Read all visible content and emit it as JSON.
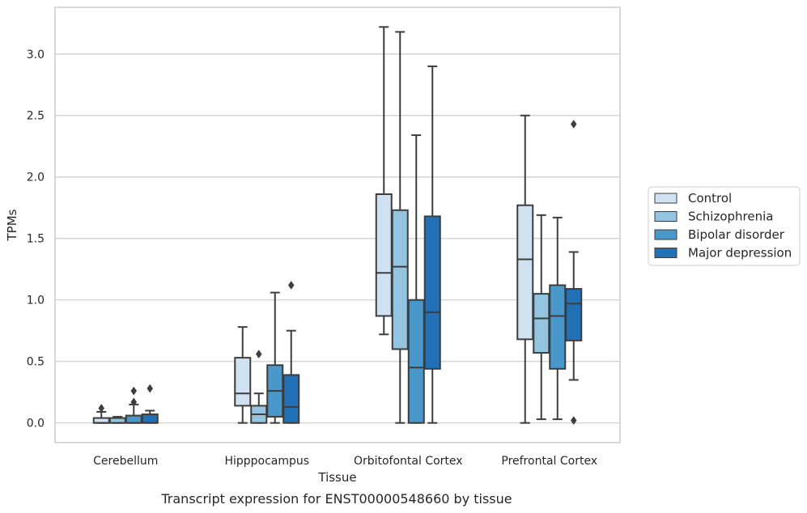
{
  "caption": "Transcript expression for ENST00000548660 by tissue",
  "chart_data": {
    "type": "box",
    "xlabel": "Tissue",
    "ylabel": "TPMs",
    "ylim": [
      -0.16,
      3.38
    ],
    "yticks": [
      0.0,
      0.5,
      1.0,
      1.5,
      2.0,
      2.5,
      3.0
    ],
    "ytick_labels": [
      "0.0",
      "0.5",
      "1.0",
      "1.5",
      "2.0",
      "2.5",
      "3.0"
    ],
    "grid": "horizontal",
    "legend_position": "right",
    "categories": [
      "Cerebellum",
      "Hipppocampus",
      "Orbitofontal Cortex",
      "Prefrontal Cortex"
    ],
    "series": [
      {
        "name": "Control",
        "color": "#d0e1f2",
        "boxes": [
          {
            "whisker_low": 0.0,
            "q1": 0.0,
            "median": 0.0,
            "q3": 0.04,
            "whisker_high": 0.09,
            "outliers": [
              0.12
            ]
          },
          {
            "whisker_low": 0.0,
            "q1": 0.14,
            "median": 0.24,
            "q3": 0.53,
            "whisker_high": 0.78,
            "outliers": []
          },
          {
            "whisker_low": 0.72,
            "q1": 0.87,
            "median": 1.22,
            "q3": 1.86,
            "whisker_high": 3.22,
            "outliers": []
          },
          {
            "whisker_low": 0.0,
            "q1": 0.68,
            "median": 1.33,
            "q3": 1.77,
            "whisker_high": 2.5,
            "outliers": []
          }
        ]
      },
      {
        "name": "Schizophrenia",
        "color": "#94c4df",
        "boxes": [
          {
            "whisker_low": 0.0,
            "q1": 0.0,
            "median": 0.0,
            "q3": 0.04,
            "whisker_high": 0.05,
            "outliers": []
          },
          {
            "whisker_low": 0.0,
            "q1": 0.0,
            "median": 0.07,
            "q3": 0.14,
            "whisker_high": 0.24,
            "outliers": [
              0.56
            ]
          },
          {
            "whisker_low": 0.0,
            "q1": 0.6,
            "median": 1.27,
            "q3": 1.73,
            "whisker_high": 3.18,
            "outliers": []
          },
          {
            "whisker_low": 0.03,
            "q1": 0.57,
            "median": 0.85,
            "q3": 1.05,
            "whisker_high": 1.69,
            "outliers": []
          }
        ]
      },
      {
        "name": "Bipolar disorder",
        "color": "#4a98c9",
        "boxes": [
          {
            "whisker_low": 0.0,
            "q1": 0.0,
            "median": 0.0,
            "q3": 0.06,
            "whisker_high": 0.15,
            "outliers": [
              0.17,
              0.26
            ]
          },
          {
            "whisker_low": 0.0,
            "q1": 0.05,
            "median": 0.26,
            "q3": 0.47,
            "whisker_high": 1.06,
            "outliers": []
          },
          {
            "whisker_low": 0.0,
            "q1": 0.0,
            "median": 0.45,
            "q3": 1.0,
            "whisker_high": 2.34,
            "outliers": []
          },
          {
            "whisker_low": 0.03,
            "q1": 0.44,
            "median": 0.87,
            "q3": 1.12,
            "whisker_high": 1.67,
            "outliers": []
          }
        ]
      },
      {
        "name": "Major depression",
        "color": "#2270b5",
        "boxes": [
          {
            "whisker_low": 0.0,
            "q1": 0.0,
            "median": 0.0,
            "q3": 0.07,
            "whisker_high": 0.1,
            "outliers": [
              0.28
            ]
          },
          {
            "whisker_low": 0.0,
            "q1": 0.0,
            "median": 0.13,
            "q3": 0.39,
            "whisker_high": 0.75,
            "outliers": [
              1.12
            ]
          },
          {
            "whisker_low": 0.0,
            "q1": 0.44,
            "median": 0.9,
            "q3": 1.68,
            "whisker_high": 2.9,
            "outliers": []
          },
          {
            "whisker_low": 0.35,
            "q1": 0.67,
            "median": 0.97,
            "q3": 1.09,
            "whisker_high": 1.39,
            "outliers": [
              0.02,
              2.43
            ]
          }
        ]
      }
    ]
  }
}
